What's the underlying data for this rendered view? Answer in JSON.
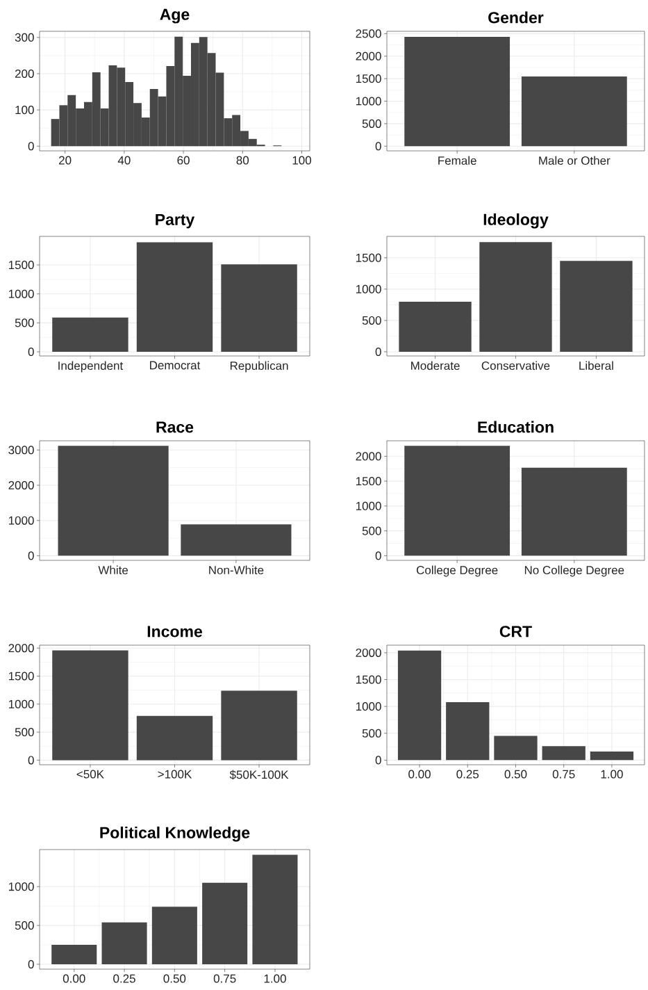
{
  "chart_data": [
    {
      "type": "histogram",
      "title": "Age",
      "color": "#474747",
      "grid": true,
      "bins": [
        15.3,
        18.08,
        20.86,
        23.64,
        26.42,
        29.2,
        31.98,
        34.76,
        37.54,
        40.32,
        43.1,
        45.88,
        48.66,
        51.44,
        54.22,
        57.0,
        59.78,
        62.56,
        65.34,
        68.12,
        70.9,
        73.68,
        76.46,
        79.24,
        82.02,
        84.8,
        87.58,
        90.36,
        93.14,
        95.92,
        98.7
      ],
      "values": [
        75,
        113,
        141,
        104,
        122,
        204,
        104,
        223,
        217,
        177,
        119,
        79,
        158,
        137,
        221,
        302,
        194,
        285,
        301,
        257,
        203,
        77,
        86,
        42,
        20,
        4,
        0,
        2,
        0,
        null
      ],
      "xlim": [
        11.4,
        102.7
      ],
      "xticks": [
        20,
        40,
        60,
        80,
        100
      ],
      "ylim": [
        -13,
        317
      ],
      "yticks": [
        0,
        100,
        200,
        300
      ]
    },
    {
      "type": "bar",
      "title": "Gender",
      "color": "#474747",
      "grid": true,
      "categories": [
        "Female",
        "Male or Other"
      ],
      "values": [
        2430,
        1550
      ],
      "ylim": [
        -104,
        2552
      ],
      "yticks": [
        0,
        500,
        1000,
        1500,
        2000,
        2500
      ]
    },
    {
      "type": "bar",
      "title": "Party",
      "color": "#474747",
      "grid": true,
      "categories": [
        "Independent",
        "Democrat",
        "Republican"
      ],
      "values": [
        590,
        1890,
        1510
      ],
      "ylim": [
        -72,
        1993
      ],
      "yticks": [
        0,
        500,
        1000,
        1500
      ]
    },
    {
      "type": "bar",
      "title": "Ideology",
      "color": "#474747",
      "grid": true,
      "categories": [
        "Moderate",
        "Conservative",
        "Liberal"
      ],
      "values": [
        800,
        1750,
        1450
      ],
      "ylim": [
        -67,
        1842
      ],
      "yticks": [
        0,
        500,
        1000,
        1500
      ]
    },
    {
      "type": "bar",
      "title": "Race",
      "color": "#474747",
      "grid": true,
      "categories": [
        "White",
        "Non-White"
      ],
      "values": [
        3120,
        890
      ],
      "ylim": [
        -131,
        3262
      ],
      "yticks": [
        0,
        1000,
        2000,
        3000
      ]
    },
    {
      "type": "bar",
      "title": "Education",
      "color": "#474747",
      "grid": true,
      "categories": [
        "College Degree",
        "No College Degree"
      ],
      "values": [
        2210,
        1770
      ],
      "ylim": [
        -93,
        2312
      ],
      "yticks": [
        0,
        500,
        1000,
        1500,
        2000
      ]
    },
    {
      "type": "bar",
      "title": "Income",
      "color": "#474747",
      "grid": true,
      "categories": [
        "<50K",
        ">100K",
        "$50K-100K"
      ],
      "values": [
        1960,
        790,
        1240
      ],
      "ylim": [
        -82,
        2052
      ],
      "yticks": [
        0,
        500,
        1000,
        1500,
        2000
      ]
    },
    {
      "type": "bar",
      "title": "CRT",
      "color": "#474747",
      "grid": true,
      "x": [
        0,
        0.25,
        0.5,
        0.75,
        1
      ],
      "values": [
        2040,
        1080,
        450,
        260,
        160
      ],
      "xlim": [
        -0.17,
        1.17
      ],
      "xticks": [
        {
          "value": 0,
          "label": "0.00"
        },
        {
          "value": 0.25,
          "label": "0.25"
        },
        {
          "value": 0.5,
          "label": "0.50"
        },
        {
          "value": 0.75,
          "label": "0.75"
        },
        {
          "value": 1,
          "label": "1.00"
        }
      ],
      "ylim": [
        -86,
        2141
      ],
      "yticks": [
        0,
        500,
        1000,
        1500,
        2000
      ]
    },
    {
      "type": "bar",
      "title": "Political Knowledge",
      "color": "#474747",
      "grid": true,
      "x": [
        0,
        0.25,
        0.5,
        0.75,
        1
      ],
      "values": [
        250,
        540,
        740,
        1050,
        1410
      ],
      "xlim": [
        -0.172,
        1.173
      ],
      "xticks": [
        {
          "value": 0,
          "label": "0.00"
        },
        {
          "value": 0.25,
          "label": "0.25"
        },
        {
          "value": 0.5,
          "label": "0.50"
        },
        {
          "value": 0.75,
          "label": "0.75"
        },
        {
          "value": 1,
          "label": "1.00"
        }
      ],
      "ylim": [
        -63,
        1477
      ],
      "yticks": [
        0,
        500,
        1000
      ]
    }
  ]
}
